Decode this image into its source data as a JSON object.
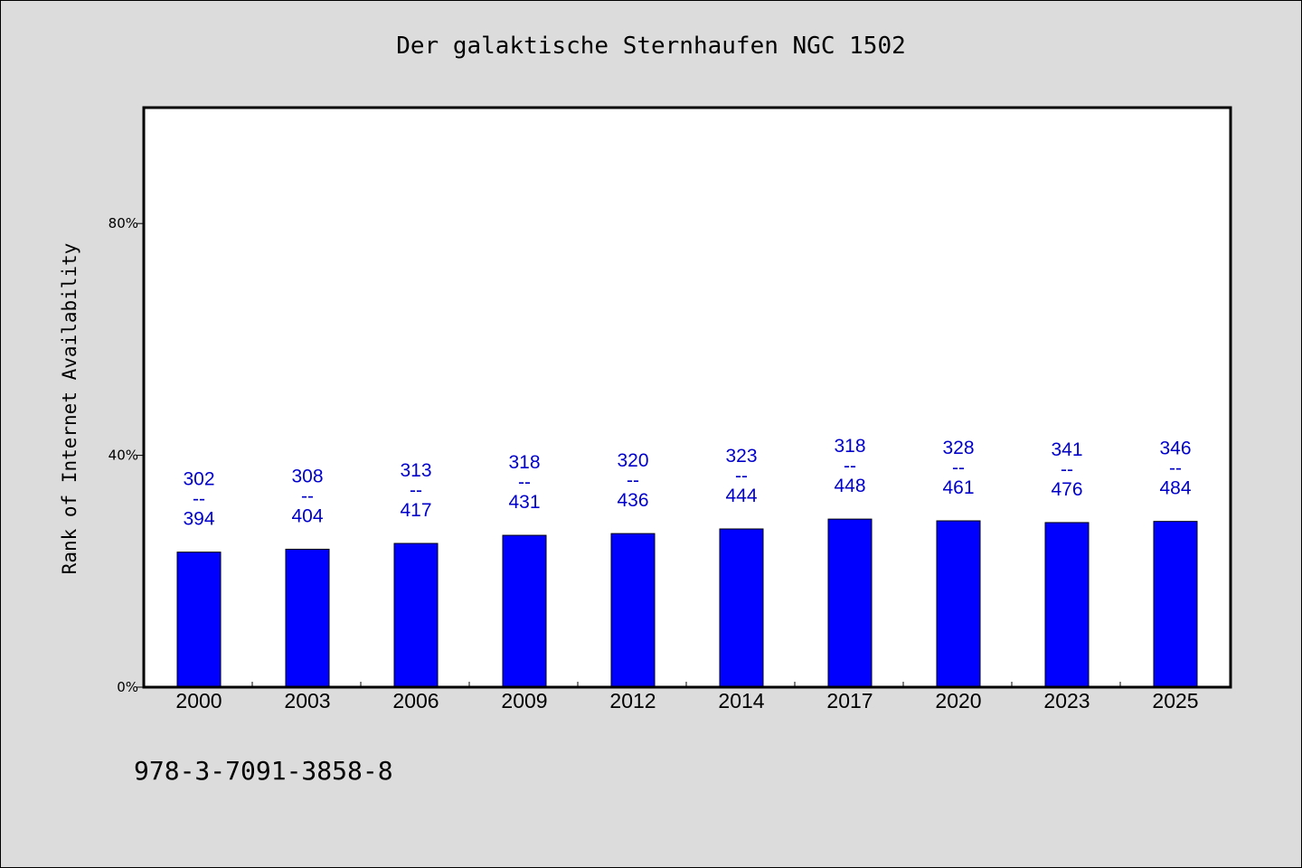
{
  "title": "Der galaktische Sternhaufen NGC 1502",
  "footer_text": "978-3-7091-3858-8",
  "chart_data": {
    "type": "bar",
    "title": "Der galaktische Sternhaufen NGC 1502",
    "xlabel": "",
    "ylabel": "Rank of Internet Availability",
    "ylim": [
      0,
      100
    ],
    "y_ticks": [
      {
        "value": 0,
        "label": "0%"
      },
      {
        "value": 40,
        "label": "40%"
      },
      {
        "value": 80,
        "label": "80%"
      }
    ],
    "categories": [
      "2000",
      "2003",
      "2006",
      "2009",
      "2012",
      "2014",
      "2017",
      "2020",
      "2023",
      "2025"
    ],
    "values": [
      23.3,
      23.8,
      24.8,
      26.2,
      26.5,
      27.3,
      29.0,
      28.7,
      28.4,
      28.6
    ],
    "data_labels": [
      {
        "top": "302",
        "sep": "--",
        "bottom": "394"
      },
      {
        "top": "308",
        "sep": "--",
        "bottom": "404"
      },
      {
        "top": "313",
        "sep": "--",
        "bottom": "417"
      },
      {
        "top": "318",
        "sep": "--",
        "bottom": "431"
      },
      {
        "top": "320",
        "sep": "--",
        "bottom": "436"
      },
      {
        "top": "323",
        "sep": "--",
        "bottom": "444"
      },
      {
        "top": "318",
        "sep": "--",
        "bottom": "448"
      },
      {
        "top": "328",
        "sep": "--",
        "bottom": "461"
      },
      {
        "top": "341",
        "sep": "--",
        "bottom": "476"
      },
      {
        "top": "346",
        "sep": "--",
        "bottom": "484"
      }
    ],
    "bar_color": "#0000ff",
    "label_color": "#0000cc",
    "grid": false,
    "legend": "none"
  }
}
